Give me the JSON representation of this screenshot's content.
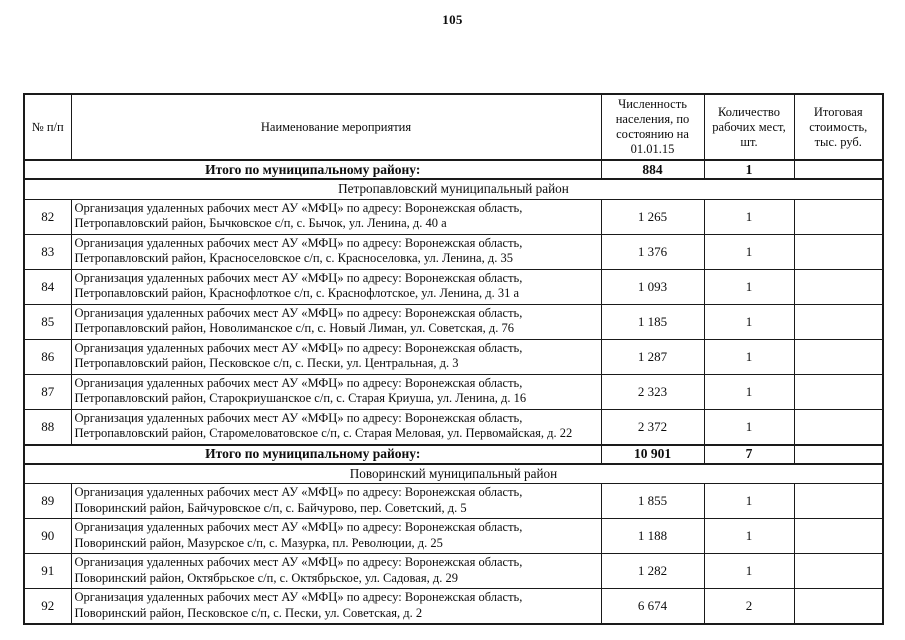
{
  "page": {
    "number": "105"
  },
  "table": {
    "columns": [
      "№ п/п",
      "Наименование мероприятия",
      "Численность населения, по состоянию на 01.01.15",
      "Количество рабочих мест, шт.",
      "Итоговая стоимость, тыс. руб."
    ],
    "rows": [
      {
        "type": "total",
        "label": "Итого по муниципальному району:",
        "population": "884",
        "jobs": "1",
        "cost": ""
      },
      {
        "type": "section",
        "label": "Петропавловский муниципальный район"
      },
      {
        "type": "item",
        "num": "82",
        "name": "Организация удаленных рабочих мест АУ «МФЦ» по адресу: Воронежская область,\nПетропавловский район, Бычковское с/п, с. Бычок, ул. Ленина, д. 40 а",
        "population": "1 265",
        "jobs": "1",
        "cost": ""
      },
      {
        "type": "item",
        "num": "83",
        "name": "Организация удаленных рабочих мест АУ «МФЦ» по адресу: Воронежская область,\nПетропавловский район,  Красноселовское с/п, с. Красноселовка, ул. Ленина, д. 35",
        "population": "1 376",
        "jobs": "1",
        "cost": ""
      },
      {
        "type": "item",
        "num": "84",
        "name": "Организация удаленных рабочих мест АУ «МФЦ» по адресу: Воронежская область,\nПетропавловский район, Краснофлоткое с/п, с. Краснофлотское, ул. Ленина, д. 31 а",
        "population": "1 093",
        "jobs": "1",
        "cost": ""
      },
      {
        "type": "item",
        "num": "85",
        "name": "Организация удаленных рабочих мест АУ «МФЦ» по адресу: Воронежская область,\nПетропавловский район,  Новолиманское с/п,  с. Новый Лиман, ул. Советская, д. 76",
        "population": "1 185",
        "jobs": "1",
        "cost": ""
      },
      {
        "type": "item",
        "num": "86",
        "name": "Организация удаленных рабочих мест АУ «МФЦ» по адресу: Воронежская область,\nПетропавловский район,  Песковское с/п,  с. Пески, ул. Центральная, д. 3",
        "population": "1 287",
        "jobs": "1",
        "cost": ""
      },
      {
        "type": "item",
        "num": "87",
        "name": "Организация удаленных рабочих мест АУ «МФЦ» по адресу: Воронежская область,\nПетропавловский район, Старокриушанское с/п, с. Старая Криуша, ул. Ленина, д. 16",
        "population": "2 323",
        "jobs": "1",
        "cost": ""
      },
      {
        "type": "item",
        "num": "88",
        "name": "Организация удаленных рабочих мест АУ «МФЦ» по адресу: Воронежская область,\nПетропавловский район,  Старомеловатовское с/п, с. Старая Меловая,  ул. Первомайская, д. 22",
        "population": "2 372",
        "jobs": "1",
        "cost": ""
      },
      {
        "type": "total",
        "label": "Итого по муниципальному району:",
        "population": "10 901",
        "jobs": "7",
        "cost": ""
      },
      {
        "type": "section",
        "label": "Поворинский муниципальный район"
      },
      {
        "type": "item",
        "num": "89",
        "name": "Организация удаленных рабочих мест АУ «МФЦ» по адресу: Воронежская область,\nПоворинский район, Байчуровское с/п, с. Байчурово, пер. Советский, д. 5",
        "population": "1 855",
        "jobs": "1",
        "cost": ""
      },
      {
        "type": "item",
        "num": "90",
        "name": "Организация удаленных рабочих мест АУ «МФЦ» по адресу: Воронежская область,\nПоворинский район, Мазурское с/п, с. Мазурка, пл. Революции, д. 25",
        "population": "1 188",
        "jobs": "1",
        "cost": ""
      },
      {
        "type": "item",
        "num": "91",
        "name": "Организация удаленных рабочих мест АУ «МФЦ» по адресу: Воронежская область,\nПоворинский район, Октябрьское с/п, с. Октябрьское, ул. Садовая, д. 29",
        "population": "1 282",
        "jobs": "1",
        "cost": ""
      },
      {
        "type": "item",
        "num": "92",
        "name": "Организация удаленных рабочих мест АУ «МФЦ» по адресу: Воронежская область,\nПоворинский район, Песковское с/п, с. Пески, ул. Советская, д. 2",
        "population": "6 674",
        "jobs": "2",
        "cost": ""
      }
    ]
  }
}
